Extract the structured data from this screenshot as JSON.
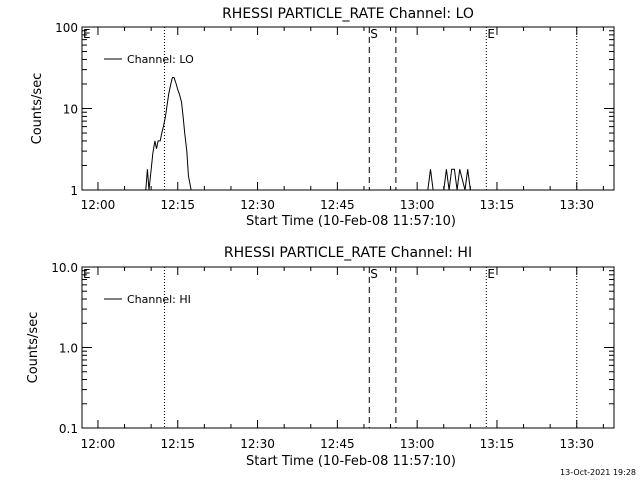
{
  "footer": {
    "timestamp": "13-Oct-2021 19:28"
  },
  "chart_data": [
    {
      "type": "line",
      "title": "RHESSI PARTICLE_RATE Channel: LO",
      "xlabel": "Start Time (10-Feb-08 11:57:10)",
      "ylabel": "Counts/sec",
      "y_scale": "log",
      "ylim": [
        1,
        100
      ],
      "xlim": [
        "11:57",
        "13:37"
      ],
      "x_ticks": [
        "12:00",
        "12:15",
        "12:30",
        "12:45",
        "13:00",
        "13:15",
        "13:30"
      ],
      "y_ticks": [
        "1",
        "10",
        "100"
      ],
      "legend": {
        "position": "top-left",
        "entries": [
          "Channel: LO"
        ]
      },
      "markers": [
        {
          "time": "12:12.5",
          "style": "dotted",
          "label": ""
        },
        {
          "time": "12:51",
          "style": "dashed",
          "label": "S"
        },
        {
          "time": "12:56",
          "style": "dashed",
          "label": ""
        },
        {
          "time": "13:13",
          "style": "dotted",
          "label": "E"
        },
        {
          "time": "13:30",
          "style": "dotted",
          "label": ""
        }
      ],
      "corner_labels": [
        "E"
      ],
      "series": [
        {
          "name": "Channel: LO",
          "x": [
            "12:09",
            "12:09.3",
            "12:09.6",
            "12:10",
            "12:10.3",
            "12:10.7",
            "12:11",
            "12:11.3",
            "12:11.7",
            "12:12",
            "12:12.3",
            "12:12.7",
            "12:13",
            "12:13.3",
            "12:13.7",
            "12:14",
            "12:14.3",
            "12:14.7",
            "12:15",
            "12:15.3",
            "12:15.7",
            "12:16",
            "12:16.3",
            "12:16.7",
            "12:17",
            "12:17.5"
          ],
          "y": [
            1,
            1.8,
            1,
            1.8,
            2.8,
            4,
            3.2,
            4,
            4,
            5,
            6,
            8,
            11,
            15,
            20,
            24,
            24,
            20,
            17,
            15,
            12,
            8,
            5,
            3,
            1.5,
            1
          ]
        },
        {
          "name": "Channel: LO",
          "x": [
            "13:02",
            "13:02.5",
            "13:03",
            "13:05",
            "13:05.5",
            "13:06",
            "13:06.5",
            "13:07",
            "13:07.5",
            "13:08",
            "13:09",
            "13:09.5",
            "13:10"
          ],
          "y": [
            1,
            1.8,
            1,
            1,
            1.8,
            1,
            1.8,
            1.8,
            1,
            1.8,
            1,
            1.8,
            1
          ]
        }
      ]
    },
    {
      "type": "line",
      "title": "RHESSI PARTICLE_RATE Channel: HI",
      "xlabel": "Start Time (10-Feb-08 11:57:10)",
      "ylabel": "Counts/sec",
      "y_scale": "log",
      "ylim": [
        0.1,
        10
      ],
      "xlim": [
        "11:57",
        "13:37"
      ],
      "x_ticks": [
        "12:00",
        "12:15",
        "12:30",
        "12:45",
        "13:00",
        "13:15",
        "13:30"
      ],
      "y_ticks": [
        "0.1",
        "1.0",
        "10.0"
      ],
      "legend": {
        "position": "top-left",
        "entries": [
          "Channel: HI"
        ]
      },
      "markers": [
        {
          "time": "12:12.5",
          "style": "dotted",
          "label": ""
        },
        {
          "time": "12:51",
          "style": "dashed",
          "label": "S"
        },
        {
          "time": "12:56",
          "style": "dashed",
          "label": ""
        },
        {
          "time": "13:13",
          "style": "dotted",
          "label": "E"
        },
        {
          "time": "13:30",
          "style": "dotted",
          "label": ""
        }
      ],
      "corner_labels": [
        "E"
      ],
      "series": [
        {
          "name": "Channel: HI",
          "x": [],
          "y": []
        }
      ]
    }
  ]
}
